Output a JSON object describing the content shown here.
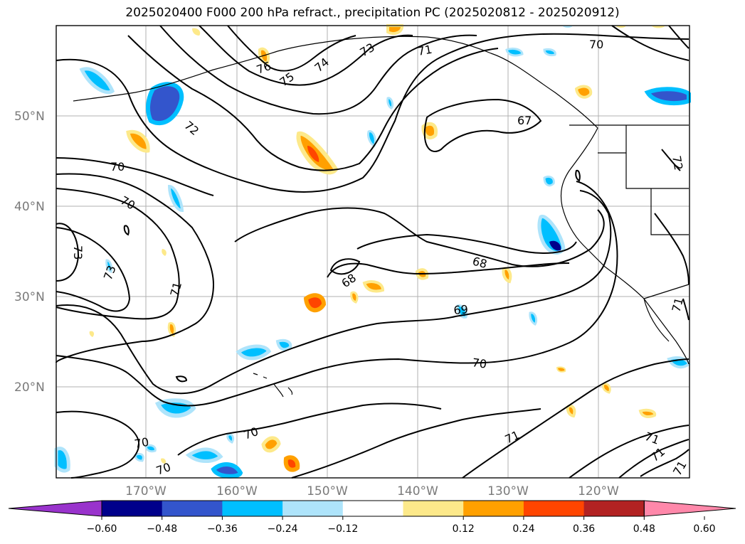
{
  "title": "2025020400 F000 200 hPa refract., precipitation PC (2025020812 - 2025020912)",
  "axes": {
    "lat_labels": [
      "50°N",
      "40°N",
      "30°N",
      "20°N"
    ],
    "lon_labels": [
      "170°W",
      "160°W",
      "150°W",
      "140°W",
      "130°W",
      "120°W"
    ]
  },
  "contour_labels": [
    "70",
    "72",
    "70",
    "73",
    "73",
    "71",
    "76",
    "75",
    "74",
    "73",
    "71",
    "70",
    "72",
    "67",
    "68",
    "68",
    "69",
    "70",
    "71",
    "71",
    "71",
    "70",
    "70",
    "70",
    "71",
    "71"
  ],
  "colorbar": {
    "ticks": [
      "−0.60",
      "−0.48",
      "−0.36",
      "−0.24",
      "−0.12",
      "0.12",
      "0.24",
      "0.36",
      "0.48",
      "0.60"
    ],
    "colors": [
      "#9933cc",
      "#00008b",
      "#3355cc",
      "#00bfff",
      "#aee4fb",
      "#ffffff",
      "#fde98a",
      "#ffa000",
      "#ff4500",
      "#b22222",
      "#ff88aa"
    ]
  }
}
